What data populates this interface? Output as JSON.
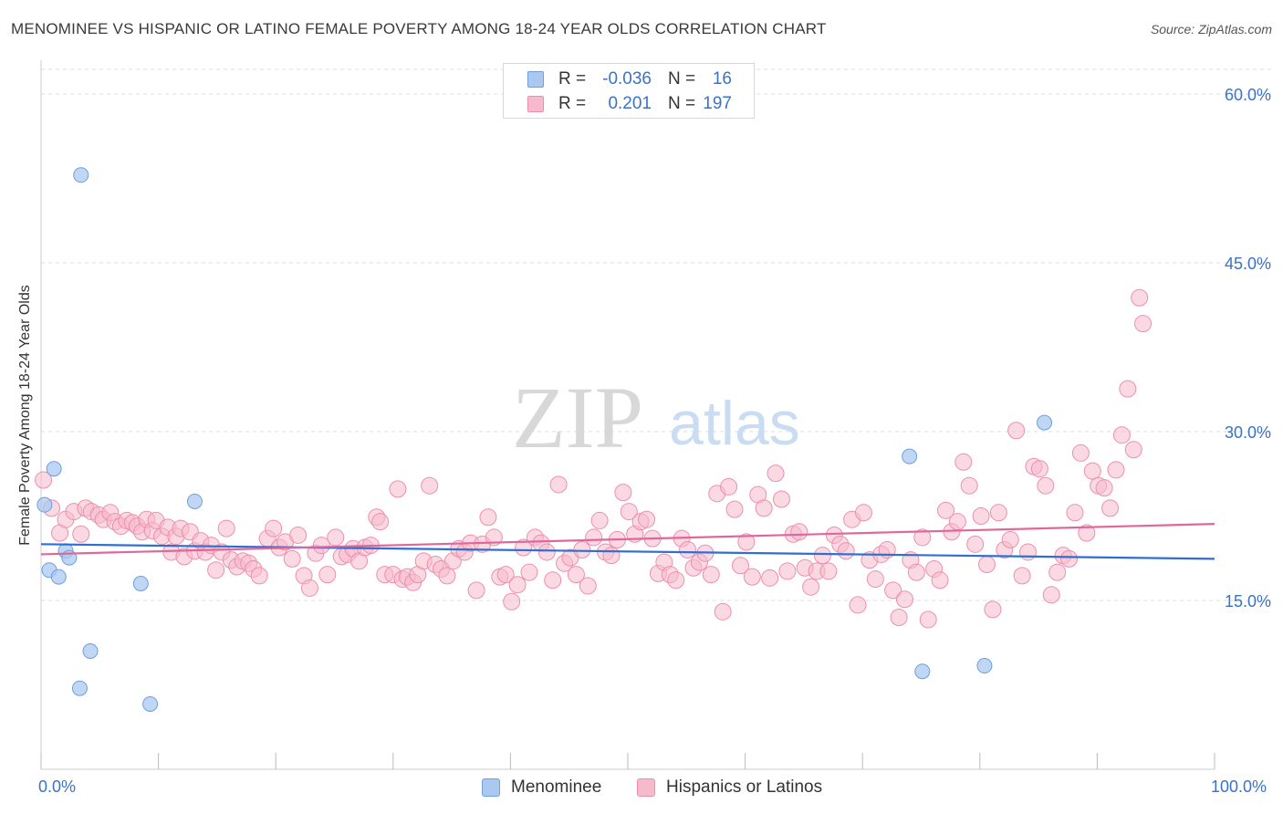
{
  "header": {
    "title": "MENOMINEE VS HISPANIC OR LATINO FEMALE POVERTY AMONG 18-24 YEAR OLDS CORRELATION CHART",
    "source": "Source: ZipAtlas.com"
  },
  "watermark": {
    "zip": "ZIP",
    "atlas": "atlas"
  },
  "legend": {
    "rows": [
      {
        "r_label": "R =",
        "r_value": "-0.036",
        "n_label": "N =",
        "n_value": "16"
      },
      {
        "r_label": "R =",
        "r_value": "0.201",
        "n_label": "N =",
        "n_value": "197"
      }
    ]
  },
  "bottom_legend": {
    "series1": "Menominee",
    "series2": "Hispanics or Latinos"
  },
  "colors": {
    "menominee_fill": "#aac8f0",
    "menominee_stroke": "#6f9fdc",
    "menominee_line": "#2f6fd0",
    "hispanic_fill": "#f7b9cc",
    "hispanic_stroke": "#ec8fae",
    "hispanic_line": "#e0679a",
    "tick_label": "#3a72c8",
    "grid": "#dcdcdc"
  },
  "chart_data": {
    "type": "scatter",
    "title": "MENOMINEE VS HISPANIC OR LATINO FEMALE POVERTY AMONG 18-24 YEAR OLDS CORRELATION CHART",
    "xlabel": "",
    "ylabel": "Female Poverty Among 18-24 Year Olds",
    "xlim": [
      0,
      100
    ],
    "ylim": [
      0,
      63
    ],
    "x_tick_labels": [
      "0.0%",
      "100.0%"
    ],
    "y_ticks": [
      15,
      30,
      45,
      60
    ],
    "y_tick_labels": [
      "15.0%",
      "30.0%",
      "45.0%",
      "60.0%"
    ],
    "grid": true,
    "legend_position": "top-center",
    "series": [
      {
        "name": "Menominee",
        "r": -0.036,
        "n": 16,
        "trend": {
          "x": [
            0,
            100
          ],
          "y": [
            20.0,
            18.7
          ]
        },
        "points": [
          [
            0.3,
            23.5
          ],
          [
            0.7,
            17.7
          ],
          [
            1.1,
            26.7
          ],
          [
            1.5,
            17.1
          ],
          [
            2.1,
            19.4
          ],
          [
            2.4,
            18.8
          ],
          [
            3.4,
            52.8
          ],
          [
            3.3,
            7.2
          ],
          [
            4.2,
            10.5
          ],
          [
            8.5,
            16.5
          ],
          [
            9.3,
            5.8
          ],
          [
            13.1,
            23.8
          ],
          [
            74.0,
            27.8
          ],
          [
            75.1,
            8.7
          ],
          [
            80.4,
            9.2
          ],
          [
            85.5,
            30.8
          ]
        ]
      },
      {
        "name": "Hispanics or Latinos",
        "r": 0.201,
        "n": 197,
        "trend": {
          "x": [
            0,
            100
          ],
          "y": [
            19.1,
            21.8
          ]
        },
        "points": [
          [
            0.2,
            25.7
          ],
          [
            0.9,
            23.2
          ],
          [
            1.6,
            21.0
          ],
          [
            2.1,
            22.2
          ],
          [
            2.8,
            22.9
          ],
          [
            3.4,
            20.9
          ],
          [
            3.8,
            23.2
          ],
          [
            4.3,
            22.9
          ],
          [
            4.9,
            22.6
          ],
          [
            5.3,
            22.2
          ],
          [
            5.9,
            22.8
          ],
          [
            6.3,
            22.0
          ],
          [
            6.8,
            21.6
          ],
          [
            7.3,
            22.1
          ],
          [
            7.8,
            21.9
          ],
          [
            8.2,
            21.6
          ],
          [
            8.6,
            21.1
          ],
          [
            9.0,
            22.2
          ],
          [
            9.5,
            21.2
          ],
          [
            9.8,
            22.1
          ],
          [
            10.3,
            20.7
          ],
          [
            10.8,
            21.5
          ],
          [
            11.1,
            19.3
          ],
          [
            11.5,
            20.7
          ],
          [
            11.9,
            21.4
          ],
          [
            12.2,
            18.9
          ],
          [
            12.7,
            21.1
          ],
          [
            13.1,
            19.4
          ],
          [
            13.6,
            20.3
          ],
          [
            14.0,
            19.3
          ],
          [
            14.5,
            19.9
          ],
          [
            14.9,
            17.7
          ],
          [
            15.4,
            19.3
          ],
          [
            15.8,
            21.4
          ],
          [
            16.2,
            18.6
          ],
          [
            16.7,
            18.0
          ],
          [
            17.2,
            18.5
          ],
          [
            17.7,
            18.3
          ],
          [
            18.1,
            17.8
          ],
          [
            18.6,
            17.2
          ],
          [
            19.3,
            20.5
          ],
          [
            19.8,
            21.4
          ],
          [
            20.3,
            19.7
          ],
          [
            20.8,
            20.2
          ],
          [
            21.4,
            18.7
          ],
          [
            21.9,
            20.8
          ],
          [
            22.4,
            17.2
          ],
          [
            22.9,
            16.1
          ],
          [
            23.4,
            19.2
          ],
          [
            23.9,
            19.9
          ],
          [
            24.4,
            17.3
          ],
          [
            25.1,
            20.6
          ],
          [
            25.6,
            18.9
          ],
          [
            26.1,
            19.1
          ],
          [
            26.6,
            19.6
          ],
          [
            27.1,
            18.5
          ],
          [
            27.6,
            19.7
          ],
          [
            28.1,
            19.9
          ],
          [
            28.6,
            22.4
          ],
          [
            28.9,
            22.0
          ],
          [
            29.3,
            17.3
          ],
          [
            30.0,
            17.3
          ],
          [
            30.4,
            24.9
          ],
          [
            30.8,
            16.9
          ],
          [
            31.2,
            17.1
          ],
          [
            31.7,
            16.6
          ],
          [
            32.1,
            17.3
          ],
          [
            32.6,
            18.5
          ],
          [
            33.1,
            25.2
          ],
          [
            33.6,
            18.2
          ],
          [
            34.1,
            17.8
          ],
          [
            34.6,
            17.2
          ],
          [
            35.1,
            18.5
          ],
          [
            35.6,
            19.6
          ],
          [
            36.1,
            19.3
          ],
          [
            36.6,
            20.1
          ],
          [
            37.1,
            15.9
          ],
          [
            37.6,
            20.0
          ],
          [
            38.1,
            22.4
          ],
          [
            38.6,
            20.6
          ],
          [
            39.1,
            17.1
          ],
          [
            39.6,
            17.3
          ],
          [
            40.1,
            14.9
          ],
          [
            40.6,
            16.4
          ],
          [
            41.1,
            19.7
          ],
          [
            41.6,
            17.5
          ],
          [
            42.1,
            20.6
          ],
          [
            42.6,
            20.1
          ],
          [
            43.1,
            19.3
          ],
          [
            43.6,
            16.8
          ],
          [
            44.1,
            25.3
          ],
          [
            44.6,
            18.3
          ],
          [
            45.1,
            18.8
          ],
          [
            45.6,
            17.3
          ],
          [
            46.1,
            19.5
          ],
          [
            46.6,
            16.3
          ],
          [
            47.1,
            20.6
          ],
          [
            47.6,
            22.1
          ],
          [
            48.1,
            19.3
          ],
          [
            48.6,
            19.0
          ],
          [
            49.1,
            20.4
          ],
          [
            49.6,
            24.6
          ],
          [
            50.1,
            22.9
          ],
          [
            50.6,
            20.9
          ],
          [
            51.1,
            22.0
          ],
          [
            51.6,
            22.2
          ],
          [
            52.1,
            20.5
          ],
          [
            52.6,
            17.4
          ],
          [
            53.1,
            18.4
          ],
          [
            53.6,
            17.3
          ],
          [
            54.1,
            16.8
          ],
          [
            54.6,
            20.5
          ],
          [
            55.1,
            19.5
          ],
          [
            55.6,
            17.9
          ],
          [
            56.1,
            18.4
          ],
          [
            56.6,
            19.2
          ],
          [
            57.1,
            17.3
          ],
          [
            57.6,
            24.5
          ],
          [
            58.1,
            14.0
          ],
          [
            58.6,
            25.1
          ],
          [
            59.1,
            23.1
          ],
          [
            59.6,
            18.1
          ],
          [
            60.1,
            20.2
          ],
          [
            60.6,
            17.1
          ],
          [
            61.1,
            24.4
          ],
          [
            61.6,
            23.2
          ],
          [
            62.1,
            17.0
          ],
          [
            62.6,
            26.3
          ],
          [
            63.1,
            24.0
          ],
          [
            63.6,
            17.6
          ],
          [
            64.1,
            20.9
          ],
          [
            64.6,
            21.1
          ],
          [
            65.1,
            17.9
          ],
          [
            65.6,
            16.2
          ],
          [
            66.1,
            17.6
          ],
          [
            66.6,
            19.0
          ],
          [
            67.1,
            17.6
          ],
          [
            67.6,
            20.8
          ],
          [
            68.1,
            20.0
          ],
          [
            68.6,
            19.4
          ],
          [
            69.1,
            22.2
          ],
          [
            69.6,
            14.6
          ],
          [
            70.1,
            22.8
          ],
          [
            70.6,
            18.6
          ],
          [
            71.1,
            16.9
          ],
          [
            71.6,
            19.1
          ],
          [
            72.1,
            19.5
          ],
          [
            72.6,
            15.9
          ],
          [
            73.1,
            13.5
          ],
          [
            73.6,
            15.1
          ],
          [
            74.1,
            18.6
          ],
          [
            74.6,
            17.5
          ],
          [
            75.1,
            20.6
          ],
          [
            75.6,
            13.3
          ],
          [
            76.1,
            17.8
          ],
          [
            76.6,
            16.8
          ],
          [
            77.1,
            23.0
          ],
          [
            77.6,
            21.1
          ],
          [
            78.1,
            22.0
          ],
          [
            78.6,
            27.3
          ],
          [
            79.1,
            25.2
          ],
          [
            79.6,
            20.0
          ],
          [
            80.1,
            22.5
          ],
          [
            80.6,
            18.2
          ],
          [
            81.1,
            14.2
          ],
          [
            81.6,
            22.8
          ],
          [
            82.1,
            19.5
          ],
          [
            82.6,
            20.4
          ],
          [
            83.1,
            30.1
          ],
          [
            83.6,
            17.2
          ],
          [
            84.1,
            19.3
          ],
          [
            84.6,
            26.9
          ],
          [
            85.1,
            26.7
          ],
          [
            85.6,
            25.2
          ],
          [
            86.1,
            15.5
          ],
          [
            86.6,
            17.5
          ],
          [
            87.1,
            19.0
          ],
          [
            87.6,
            18.7
          ],
          [
            88.1,
            22.8
          ],
          [
            88.6,
            28.1
          ],
          [
            89.1,
            21.0
          ],
          [
            89.6,
            26.5
          ],
          [
            90.1,
            25.2
          ],
          [
            90.6,
            25.0
          ],
          [
            91.1,
            23.2
          ],
          [
            91.6,
            26.6
          ],
          [
            92.1,
            29.7
          ],
          [
            92.6,
            33.8
          ],
          [
            93.1,
            28.4
          ],
          [
            93.6,
            41.9
          ],
          [
            93.9,
            39.6
          ]
        ]
      }
    ]
  }
}
